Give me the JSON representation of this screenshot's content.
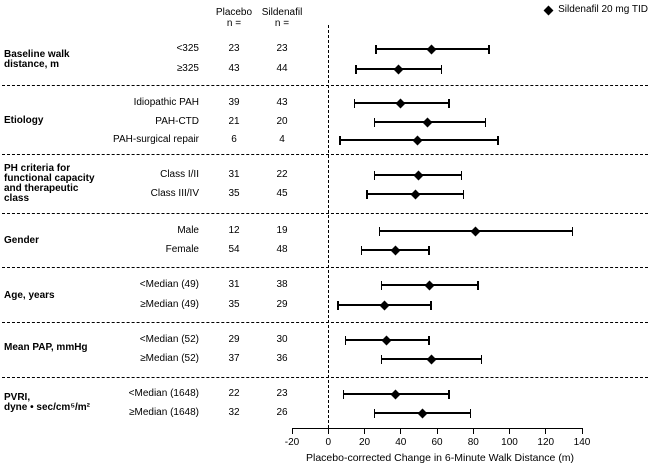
{
  "legend": {
    "marker": "diamond",
    "label": "Sildenafil 20 mg TID"
  },
  "table_header": {
    "placebo": "Placebo",
    "sildenafil": "Sildenafil",
    "n_eq": "n ="
  },
  "chart_data": {
    "type": "forest",
    "series_label": "Sildenafil 20 mg TID",
    "xlabel": "Placebo-corrected Change in 6-Minute Walk Distance (m)",
    "x_ticks": [
      -20,
      0,
      20,
      40,
      60,
      80,
      100,
      120,
      140
    ],
    "xlim": [
      -20,
      140
    ],
    "reference_line_x": 0,
    "grid": false,
    "legend_position": "top-right",
    "groups": [
      {
        "label_lines": [
          "Baseline walk",
          "distance, m"
        ],
        "rows": [
          {
            "subgroup": "<325",
            "placebo_n": 23,
            "sildenafil_n": 23,
            "estimate": 57,
            "ci_low": 26,
            "ci_high": 89
          },
          {
            "subgroup": "≥325",
            "placebo_n": 43,
            "sildenafil_n": 44,
            "estimate": 39,
            "ci_low": 15,
            "ci_high": 63
          }
        ]
      },
      {
        "label_lines": [
          "Etiology"
        ],
        "rows": [
          {
            "subgroup": "Idiopathic PAH",
            "placebo_n": 39,
            "sildenafil_n": 43,
            "estimate": 40,
            "ci_low": 14,
            "ci_high": 67
          },
          {
            "subgroup": "PAH-CTD",
            "placebo_n": 21,
            "sildenafil_n": 20,
            "estimate": 55,
            "ci_low": 25,
            "ci_high": 87
          },
          {
            "subgroup": "PAH-surgical repair",
            "placebo_n": 6,
            "sildenafil_n": 4,
            "estimate": 49,
            "ci_low": 6,
            "ci_high": 94
          }
        ]
      },
      {
        "label_lines": [
          "PH criteria for",
          "functional capacity",
          "and therapeutic",
          "class"
        ],
        "rows": [
          {
            "subgroup": "Class I/II",
            "placebo_n": 31,
            "sildenafil_n": 22,
            "estimate": 50,
            "ci_low": 25,
            "ci_high": 74
          },
          {
            "subgroup": "Class III/IV",
            "placebo_n": 35,
            "sildenafil_n": 45,
            "estimate": 48,
            "ci_low": 21,
            "ci_high": 75
          }
        ]
      },
      {
        "label_lines": [
          "Gender"
        ],
        "rows": [
          {
            "subgroup": "Male",
            "placebo_n": 12,
            "sildenafil_n": 19,
            "estimate": 81,
            "ci_low": 28,
            "ci_high": 135
          },
          {
            "subgroup": "Female",
            "placebo_n": 54,
            "sildenafil_n": 48,
            "estimate": 37,
            "ci_low": 18,
            "ci_high": 56
          }
        ]
      },
      {
        "label_lines": [
          "Age, years"
        ],
        "rows": [
          {
            "subgroup": "<Median (49)",
            "placebo_n": 31,
            "sildenafil_n": 38,
            "estimate": 56,
            "ci_low": 29,
            "ci_high": 83
          },
          {
            "subgroup": "≥Median (49)",
            "placebo_n": 35,
            "sildenafil_n": 29,
            "estimate": 31,
            "ci_low": 5,
            "ci_high": 57
          }
        ]
      },
      {
        "label_lines": [
          "Mean PAP, mmHg"
        ],
        "rows": [
          {
            "subgroup": "<Median (52)",
            "placebo_n": 29,
            "sildenafil_n": 30,
            "estimate": 32,
            "ci_low": 9,
            "ci_high": 56
          },
          {
            "subgroup": "≥Median (52)",
            "placebo_n": 37,
            "sildenafil_n": 36,
            "estimate": 57,
            "ci_low": 29,
            "ci_high": 85
          }
        ]
      },
      {
        "label_lines": [
          "PVRI,",
          "dyne • sec/cm⁵/m²"
        ],
        "rows": [
          {
            "subgroup": "<Median (1648)",
            "placebo_n": 22,
            "sildenafil_n": 23,
            "estimate": 37,
            "ci_low": 8,
            "ci_high": 67
          },
          {
            "subgroup": "≥Median (1648)",
            "placebo_n": 32,
            "sildenafil_n": 26,
            "estimate": 52,
            "ci_low": 25,
            "ci_high": 79
          }
        ]
      }
    ]
  }
}
